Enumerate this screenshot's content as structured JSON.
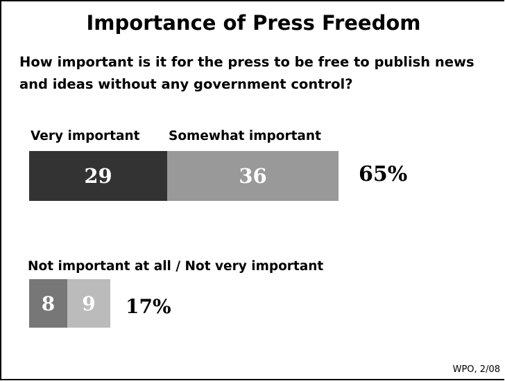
{
  "chart_data": {
    "type": "bar",
    "title": "Importance of Press Freedom",
    "question": "How important is it for the press to be free to publish news and ideas without any government control?",
    "groups": [
      {
        "label": "",
        "total_label": "65%",
        "segments": [
          {
            "name": "Very important",
            "value": 29,
            "color": "#333333"
          },
          {
            "name": "Somewhat important",
            "value": 36,
            "color": "#999999"
          }
        ]
      },
      {
        "label": "Not important at all / Not very important",
        "total_label": "17%",
        "segments": [
          {
            "name": "",
            "value": 8,
            "color": "#777777"
          },
          {
            "name": "",
            "value": 9,
            "color": "#bbbbbb"
          }
        ]
      }
    ],
    "source": "WPO, 2/08"
  }
}
